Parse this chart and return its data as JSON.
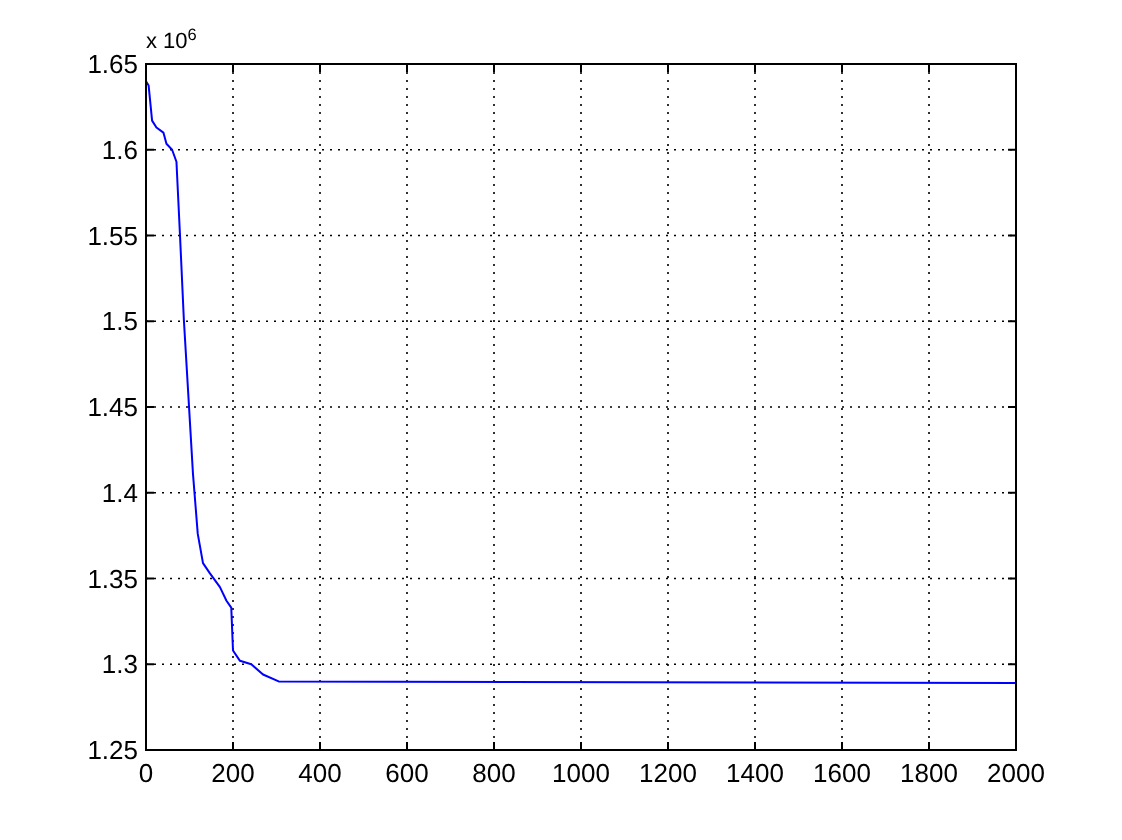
{
  "chart_data": {
    "type": "line",
    "x": [
      0,
      6,
      14,
      24,
      40,
      47,
      60,
      70,
      78,
      87,
      98,
      108,
      119,
      131,
      147,
      170,
      185,
      196,
      200,
      216,
      242,
      269,
      305,
      2000
    ],
    "series": [
      {
        "color": "#0000ff",
        "values": [
          1.64,
          1.6375,
          1.617,
          1.613,
          1.61,
          1.6035,
          1.6,
          1.593,
          1.551,
          1.501,
          1.454,
          1.411,
          1.376,
          1.359,
          1.353,
          1.345,
          1.337,
          1.333,
          1.308,
          1.302,
          1.3,
          1.294,
          1.29,
          1.289
        ]
      }
    ],
    "xlim": [
      0,
      2000
    ],
    "xticks": [
      0,
      200,
      400,
      600,
      800,
      1000,
      1200,
      1400,
      1600,
      1800,
      2000
    ],
    "ylim": [
      1.25,
      1.65
    ],
    "yticks": [
      1.25,
      1.3,
      1.35,
      1.4,
      1.45,
      1.5,
      1.55,
      1.6,
      1.65
    ],
    "grid": true,
    "line_style": "solid",
    "annotations": [
      "x 10$^{6}$"
    ]
  }
}
